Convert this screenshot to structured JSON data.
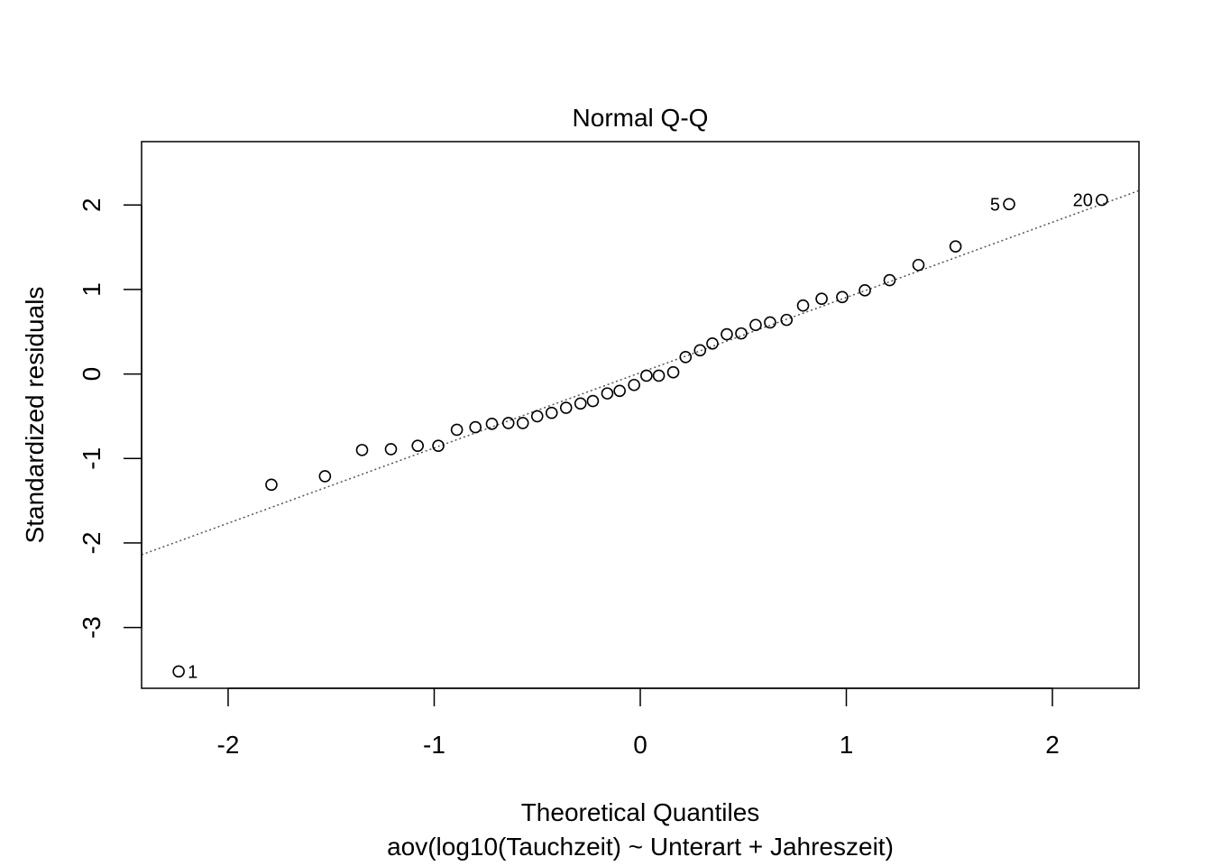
{
  "chart_data": {
    "type": "scatter",
    "title": "Normal Q-Q",
    "xlabel": "Theoretical Quantiles",
    "subtitle": "aov(log10(Tauchzeit) ~ Unterart + Jahreszeit)",
    "ylabel": "Standardized residuals",
    "xlim": [
      -2.42,
      2.42
    ],
    "ylim": [
      -3.72,
      2.75
    ],
    "x_ticks": [
      -2,
      -1,
      0,
      1,
      2
    ],
    "x_tick_labels": [
      "-2",
      "-1",
      "0",
      "1",
      "2"
    ],
    "y_ticks": [
      -3,
      -2,
      -1,
      0,
      1,
      2
    ],
    "y_tick_labels": [
      "-3",
      "-2",
      "-1",
      "0",
      "1",
      "2"
    ],
    "grid": false,
    "reference_line": {
      "style": "dotted",
      "color": "#555555",
      "x": [
        -2.42,
        2.42
      ],
      "y": [
        -2.14,
        2.17
      ]
    },
    "point_color": "#000000",
    "points": [
      {
        "x": -2.24,
        "y": -3.52,
        "label": "1"
      },
      {
        "x": -1.79,
        "y": -1.31
      },
      {
        "x": -1.53,
        "y": -1.21
      },
      {
        "x": -1.35,
        "y": -0.9
      },
      {
        "x": -1.21,
        "y": -0.89
      },
      {
        "x": -1.08,
        "y": -0.85
      },
      {
        "x": -0.98,
        "y": -0.85
      },
      {
        "x": -0.89,
        "y": -0.66
      },
      {
        "x": -0.8,
        "y": -0.63
      },
      {
        "x": -0.72,
        "y": -0.59
      },
      {
        "x": -0.64,
        "y": -0.58
      },
      {
        "x": -0.57,
        "y": -0.58
      },
      {
        "x": -0.5,
        "y": -0.5
      },
      {
        "x": -0.43,
        "y": -0.46
      },
      {
        "x": -0.36,
        "y": -0.4
      },
      {
        "x": -0.29,
        "y": -0.35
      },
      {
        "x": -0.23,
        "y": -0.32
      },
      {
        "x": -0.16,
        "y": -0.23
      },
      {
        "x": -0.1,
        "y": -0.2
      },
      {
        "x": -0.03,
        "y": -0.13
      },
      {
        "x": 0.03,
        "y": -0.02
      },
      {
        "x": 0.09,
        "y": -0.02
      },
      {
        "x": 0.16,
        "y": 0.02
      },
      {
        "x": 0.22,
        "y": 0.2
      },
      {
        "x": 0.29,
        "y": 0.28
      },
      {
        "x": 0.35,
        "y": 0.36
      },
      {
        "x": 0.42,
        "y": 0.47
      },
      {
        "x": 0.49,
        "y": 0.48
      },
      {
        "x": 0.56,
        "y": 0.58
      },
      {
        "x": 0.63,
        "y": 0.61
      },
      {
        "x": 0.71,
        "y": 0.64
      },
      {
        "x": 0.79,
        "y": 0.81
      },
      {
        "x": 0.88,
        "y": 0.89
      },
      {
        "x": 0.98,
        "y": 0.91
      },
      {
        "x": 1.09,
        "y": 0.99
      },
      {
        "x": 1.21,
        "y": 1.11
      },
      {
        "x": 1.35,
        "y": 1.29
      },
      {
        "x": 1.53,
        "y": 1.51
      },
      {
        "x": 1.79,
        "y": 2.01,
        "label": "5"
      },
      {
        "x": 2.24,
        "y": 2.06,
        "label": "20"
      }
    ]
  }
}
